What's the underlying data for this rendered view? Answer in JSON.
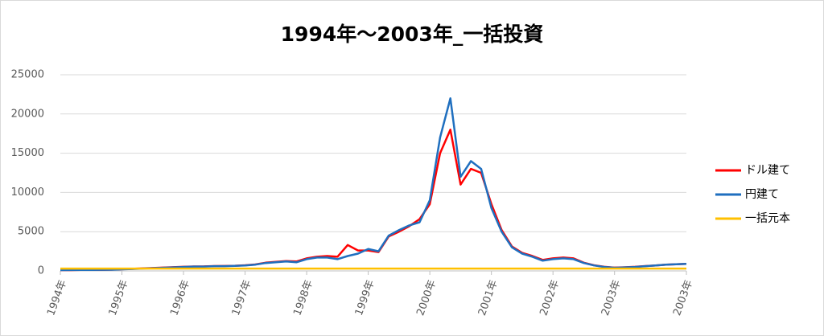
{
  "chart_data": {
    "type": "line",
    "title": "1994年～2003年_一括投資",
    "categories": [
      "1994年",
      null,
      null,
      null,
      null,
      null,
      "1995年",
      null,
      null,
      null,
      null,
      null,
      "1996年",
      null,
      null,
      null,
      null,
      null,
      "1997年",
      null,
      null,
      null,
      null,
      null,
      "1998年",
      null,
      null,
      null,
      null,
      null,
      "1999年",
      null,
      null,
      null,
      null,
      null,
      "2000年",
      null,
      null,
      null,
      null,
      null,
      "2001年",
      null,
      null,
      null,
      null,
      null,
      "2002年",
      null,
      null,
      null,
      null,
      null,
      "2003年",
      null,
      null,
      null,
      null,
      null,
      null,
      "2003年"
    ],
    "series": [
      {
        "name": "ドル建て",
        "color": "#ff0000",
        "values": [
          100,
          100,
          120,
          130,
          140,
          160,
          220,
          270,
          320,
          370,
          420,
          470,
          520,
          560,
          570,
          610,
          620,
          660,
          720,
          820,
          1050,
          1150,
          1250,
          1200,
          1600,
          1800,
          1900,
          1800,
          3300,
          2600,
          2600,
          2400,
          4400,
          5000,
          5700,
          6600,
          8500,
          15000,
          18000,
          11000,
          13000,
          12500,
          8500,
          5200,
          3100,
          2300,
          1900,
          1400,
          1600,
          1700,
          1600,
          1050,
          720,
          520,
          420,
          460,
          520,
          610,
          700,
          790,
          840,
          890
        ]
      },
      {
        "name": "円建て",
        "color": "#1f6fbf",
        "values": [
          100,
          110,
          120,
          130,
          140,
          150,
          200,
          250,
          300,
          350,
          400,
          450,
          500,
          550,
          550,
          600,
          600,
          650,
          700,
          800,
          1000,
          1100,
          1200,
          1100,
          1500,
          1700,
          1700,
          1500,
          1900,
          2200,
          2800,
          2500,
          4500,
          5200,
          5800,
          6200,
          9000,
          17000,
          22000,
          12000,
          14000,
          13000,
          8000,
          5000,
          3000,
          2200,
          1800,
          1300,
          1500,
          1600,
          1500,
          1000,
          700,
          500,
          400,
          450,
          500,
          600,
          700,
          800,
          850,
          900
        ]
      },
      {
        "name": "一括元本",
        "color": "#ffc000",
        "values": [
          300,
          300,
          300,
          300,
          300,
          300,
          300,
          300,
          300,
          300,
          300,
          300,
          300,
          300,
          300,
          300,
          300,
          300,
          300,
          300,
          300,
          300,
          300,
          300,
          300,
          300,
          300,
          300,
          300,
          300,
          300,
          300,
          300,
          300,
          300,
          300,
          300,
          300,
          300,
          300,
          300,
          300,
          300,
          300,
          300,
          300,
          300,
          300,
          300,
          300,
          300,
          300,
          300,
          300,
          300,
          300,
          300,
          300,
          300,
          300,
          300,
          300
        ]
      }
    ],
    "ylim": [
      0,
      25000
    ],
    "yticks": [
      0,
      5000,
      10000,
      15000,
      20000,
      25000
    ],
    "grid": true,
    "legend": "right"
  }
}
